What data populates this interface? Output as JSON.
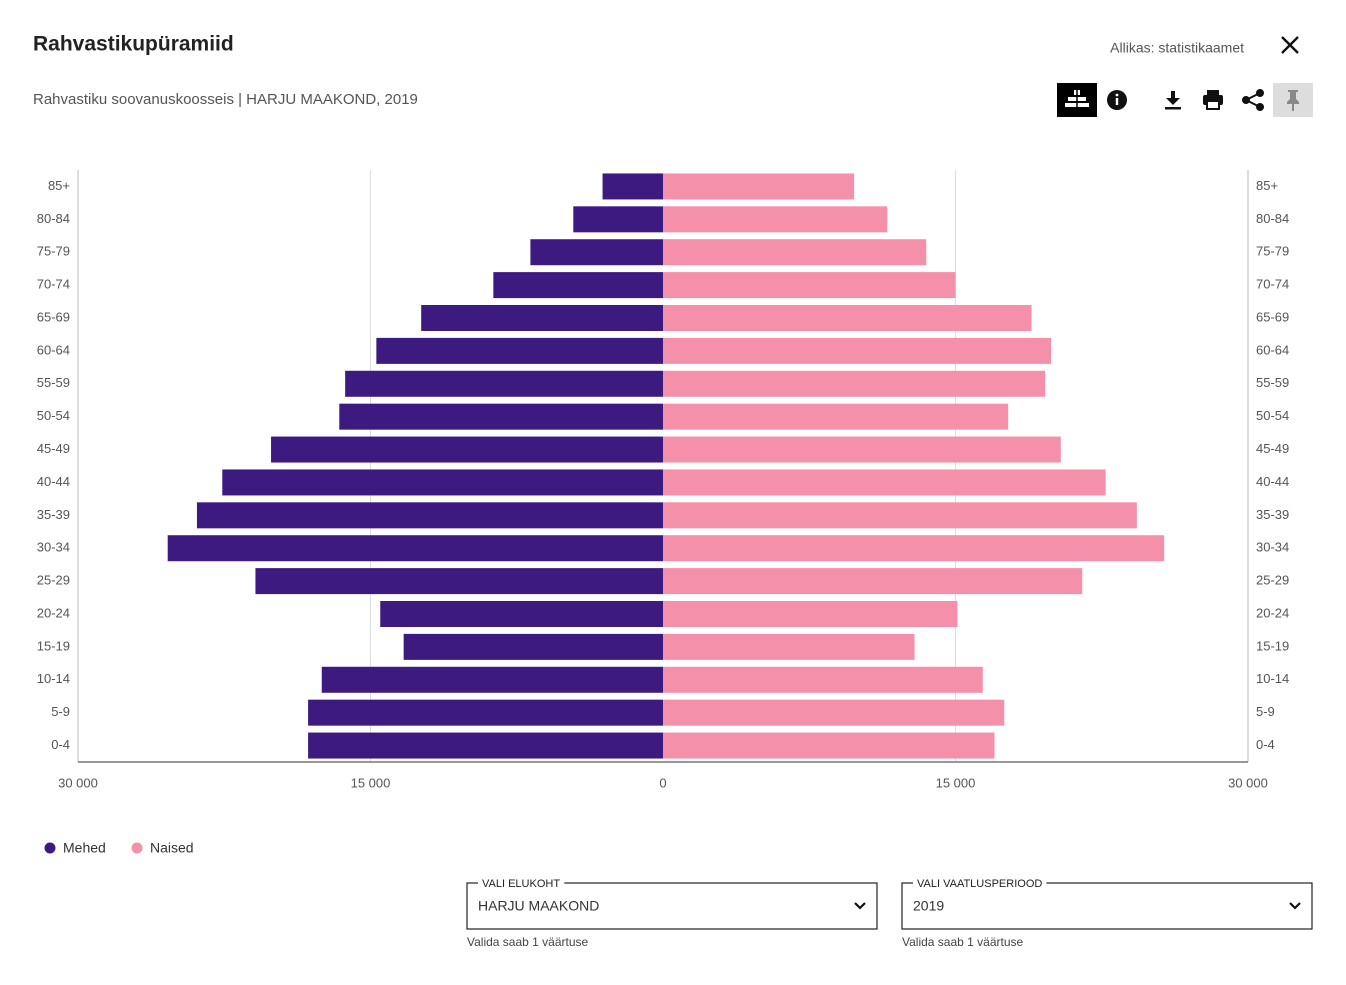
{
  "header": {
    "title": "Rahvastikupüramiid",
    "subtitle": "Rahvastiku soovanuskoosseis | HARJU MAAKOND, 2019",
    "source": "Allikas: statistikaamet"
  },
  "chart_data": {
    "type": "pyramid",
    "categories": [
      "85+",
      "80-84",
      "75-79",
      "70-74",
      "65-69",
      "60-64",
      "55-59",
      "50-54",
      "45-49",
      "40-44",
      "35-39",
      "30-34",
      "25-29",
      "20-24",
      "15-19",
      "10-14",
      "5-9",
      "0-4"
    ],
    "series": [
      {
        "name": "Mehed",
        "color": "#3d1a7f",
        "values": [
          3100,
          4600,
          6800,
          8700,
          12400,
          14700,
          16300,
          16600,
          20100,
          22600,
          23900,
          25400,
          20900,
          14500,
          13300,
          17500,
          18200,
          18200
        ]
      },
      {
        "name": "Naised",
        "color": "#f490aa",
        "values": [
          9800,
          11500,
          13500,
          15000,
          18900,
          19900,
          19600,
          17700,
          20400,
          22700,
          24300,
          25700,
          21500,
          15100,
          12900,
          16400,
          17500,
          17000
        ]
      }
    ],
    "xlim": [
      0,
      30000
    ],
    "xticks": [
      0,
      {
        "value": 15000,
        "label": "15 000"
      },
      {
        "value": 30000,
        "label": "30 000"
      }
    ],
    "grid": true
  },
  "filters": [
    {
      "label": "VALI ELUKOHT",
      "value": "HARJU MAAKOND",
      "hint": "Valida saab 1 väärtuse"
    },
    {
      "label": "VALI VAATLUSPERIOOD",
      "value": "2019",
      "hint": "Valida saab 1 väärtuse"
    }
  ]
}
